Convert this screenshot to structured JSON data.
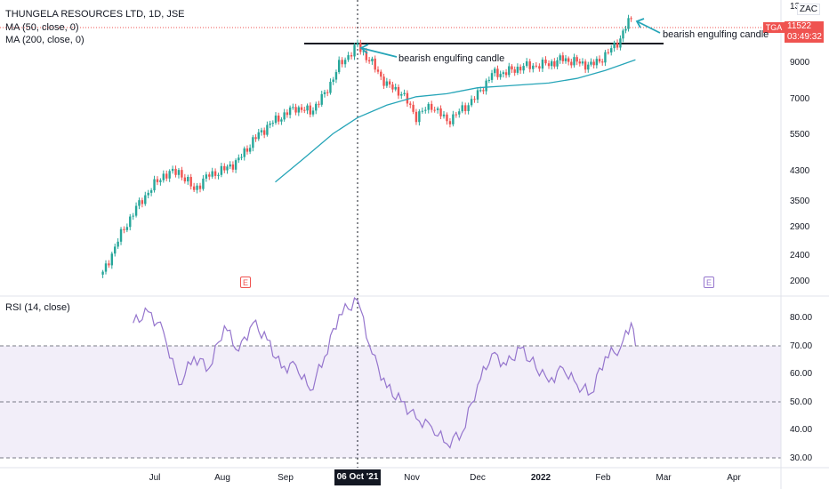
{
  "legend": {
    "title": "THUNGELA RESOURCES LTD, 1D, JSE",
    "ma50": "MA (50, close, 0)",
    "ma200": "MA (200, close, 0)",
    "rsi": "RSI (14, close)"
  },
  "price_scale": {
    "currency": "ZAC",
    "ticker": "TGA",
    "last_price": "11522",
    "countdown": "03:49:32",
    "top_tick": "13",
    "ticks": [
      "9000",
      "7000",
      "5500",
      "4300",
      "3500",
      "2900",
      "2400",
      "2000"
    ],
    "scale": "log"
  },
  "rsi_scale": {
    "ticks": [
      "80.00",
      "70.00",
      "60.00",
      "50.00",
      "40.00",
      "30.00"
    ],
    "upper_band": 70,
    "lower_band": 30,
    "mid_band": 50,
    "band_color": "#7e57c2"
  },
  "time_axis": {
    "months": [
      "Jul",
      "Aug",
      "Sep",
      "Nov",
      "Dec",
      "2022",
      "Feb",
      "Mar",
      "Apr"
    ],
    "crosshair_date": "06 Oct '21"
  },
  "annotations": {
    "first": "bearish engulfing candle",
    "second": "bearish engulfing candle",
    "resistance_level": 10300
  },
  "events": {
    "earnings_1": "E",
    "earnings_2": "E"
  },
  "colors": {
    "up": "#26a69a",
    "down": "#ef5350",
    "ma": "#26a5b8",
    "rsi": "#9575cd",
    "arrow": "#26a5b8"
  },
  "chart_data": {
    "type": "candlestick",
    "ma200_approx": [
      [
        "2021-08-27",
        3950
      ],
      [
        "2021-09-10",
        4650
      ],
      [
        "2021-09-24",
        5500
      ],
      [
        "2021-10-06",
        6150
      ],
      [
        "2021-10-20",
        6700
      ],
      [
        "2021-11-03",
        7100
      ],
      [
        "2021-11-17",
        7250
      ],
      [
        "2021-12-01",
        7550
      ],
      [
        "2021-12-15",
        7650
      ],
      [
        "2022-01-05",
        7800
      ],
      [
        "2022-01-19",
        8050
      ],
      [
        "2022-02-02",
        8500
      ],
      [
        "2022-02-16",
        9150
      ]
    ],
    "close_approx": [
      [
        "2021-06-07",
        2100
      ],
      [
        "2021-06-14",
        2650
      ],
      [
        "2021-06-21",
        3200
      ],
      [
        "2021-06-28",
        3700
      ],
      [
        "2021-07-05",
        4150
      ],
      [
        "2021-07-12",
        4250
      ],
      [
        "2021-07-19",
        3750
      ],
      [
        "2021-07-26",
        4150
      ],
      [
        "2021-08-02",
        4300
      ],
      [
        "2021-08-09",
        4600
      ],
      [
        "2021-08-16",
        5250
      ],
      [
        "2021-08-23",
        5800
      ],
      [
        "2021-08-30",
        6200
      ],
      [
        "2021-09-06",
        6600
      ],
      [
        "2021-09-13",
        6400
      ],
      [
        "2021-09-20",
        7200
      ],
      [
        "2021-09-27",
        8800
      ],
      [
        "2021-10-06",
        10100
      ],
      [
        "2021-10-13",
        8900
      ],
      [
        "2021-10-20",
        7700
      ],
      [
        "2021-10-27",
        7300
      ],
      [
        "2021-11-03",
        6200
      ],
      [
        "2021-11-10",
        6700
      ],
      [
        "2021-11-17",
        6000
      ],
      [
        "2021-11-24",
        6500
      ],
      [
        "2021-12-01",
        7200
      ],
      [
        "2021-12-08",
        8300
      ],
      [
        "2021-12-15",
        8400
      ],
      [
        "2021-12-22",
        8700
      ],
      [
        "2022-01-05",
        8900
      ],
      [
        "2022-01-12",
        9200
      ],
      [
        "2022-01-19",
        9000
      ],
      [
        "2022-01-26",
        8800
      ],
      [
        "2022-02-02",
        9400
      ],
      [
        "2022-02-09",
        10600
      ],
      [
        "2022-02-14",
        12300
      ],
      [
        "2022-02-16",
        11522
      ]
    ],
    "rsi_approx": [
      [
        "2021-06-21",
        78
      ],
      [
        "2021-06-28",
        82
      ],
      [
        "2021-07-05",
        75
      ],
      [
        "2021-07-12",
        56
      ],
      [
        "2021-07-19",
        66
      ],
      [
        "2021-07-26",
        62
      ],
      [
        "2021-08-02",
        77
      ],
      [
        "2021-08-09",
        68
      ],
      [
        "2021-08-16",
        78
      ],
      [
        "2021-08-23",
        72
      ],
      [
        "2021-08-30",
        62
      ],
      [
        "2021-09-06",
        63
      ],
      [
        "2021-09-13",
        54
      ],
      [
        "2021-09-20",
        66
      ],
      [
        "2021-09-27",
        81
      ],
      [
        "2021-10-06",
        86
      ],
      [
        "2021-10-13",
        67
      ],
      [
        "2021-10-20",
        55
      ],
      [
        "2021-10-27",
        50
      ],
      [
        "2021-11-03",
        44
      ],
      [
        "2021-11-10",
        41
      ],
      [
        "2021-11-17",
        35
      ],
      [
        "2021-11-24",
        39
      ],
      [
        "2021-12-01",
        56
      ],
      [
        "2021-12-08",
        67
      ],
      [
        "2021-12-15",
        63
      ],
      [
        "2021-12-22",
        69
      ],
      [
        "2022-01-05",
        57
      ],
      [
        "2022-01-12",
        62
      ],
      [
        "2022-01-19",
        56
      ],
      [
        "2022-01-26",
        53
      ],
      [
        "2022-02-02",
        66
      ],
      [
        "2022-02-09",
        69
      ],
      [
        "2022-02-14",
        78
      ],
      [
        "2022-02-16",
        70
      ]
    ]
  }
}
